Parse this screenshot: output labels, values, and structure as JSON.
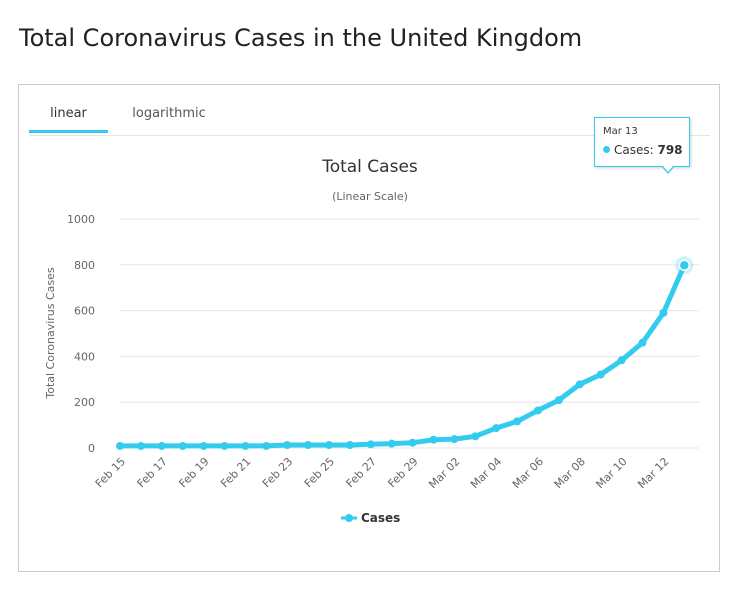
{
  "page": {
    "title": "Total Coronavirus Cases in the United Kingdom"
  },
  "tabs": [
    {
      "label": "linear",
      "active": true
    },
    {
      "label": "logarithmic",
      "active": false
    }
  ],
  "colors": {
    "series": "#33ccee",
    "grid": "#e6e6e6",
    "axis_text": "#666666"
  },
  "tooltip": {
    "date": "Mar 13",
    "series": "Cases",
    "separator": ": ",
    "value": "798"
  },
  "chart_data": {
    "type": "line",
    "title": "Total Cases",
    "subtitle": "(Linear Scale)",
    "xlabel": "",
    "ylabel": "Total Coronavirus Cases",
    "ylim": [
      0,
      1000
    ],
    "yticks": [
      "0",
      "200",
      "400",
      "600",
      "800",
      "1000"
    ],
    "categories": [
      "Feb 15",
      "Feb 16",
      "Feb 17",
      "Feb 18",
      "Feb 19",
      "Feb 20",
      "Feb 21",
      "Feb 22",
      "Feb 23",
      "Feb 24",
      "Feb 25",
      "Feb 26",
      "Feb 27",
      "Feb 28",
      "Feb 29",
      "Mar 01",
      "Mar 02",
      "Mar 03",
      "Mar 04",
      "Mar 05",
      "Mar 06",
      "Mar 07",
      "Mar 08",
      "Mar 09",
      "Mar 10",
      "Mar 11",
      "Mar 12",
      "Mar 13"
    ],
    "xtick_labels": [
      "Feb 15",
      "Feb 17",
      "Feb 19",
      "Feb 21",
      "Feb 23",
      "Feb 25",
      "Feb 27",
      "Feb 29",
      "Mar 02",
      "Mar 04",
      "Mar 06",
      "Mar 08",
      "Mar 10",
      "Mar 12"
    ],
    "grid": true,
    "legend_position": "bottom-center",
    "series": [
      {
        "name": "Cases",
        "values": [
          9,
          9,
          9,
          9,
          9,
          9,
          9,
          9,
          13,
          13,
          13,
          13,
          16,
          19,
          23,
          36,
          39,
          51,
          87,
          116,
          164,
          209,
          278,
          321,
          383,
          460,
          590,
          798
        ]
      }
    ]
  }
}
